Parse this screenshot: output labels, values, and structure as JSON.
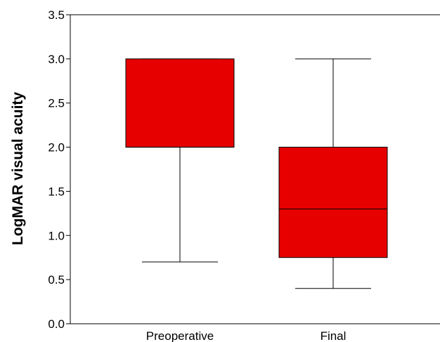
{
  "chart_data": {
    "type": "box",
    "title": "",
    "xlabel": "",
    "ylabel": "LogMAR visual acuity",
    "ylim": [
      0.0,
      3.5
    ],
    "yticks": [
      0.0,
      0.5,
      1.0,
      1.5,
      2.0,
      2.5,
      3.0,
      3.5
    ],
    "ytick_labels": [
      "0.0",
      "0.5",
      "1.0",
      "1.5",
      "2.0",
      "2.5",
      "3.0",
      "3.5"
    ],
    "categories": [
      "Preoperative",
      "Final"
    ],
    "boxes": [
      {
        "category": "Preoperative",
        "whisker_low": 0.7,
        "q1": 2.0,
        "median": 2.0,
        "q3": 3.0,
        "whisker_high": 3.0
      },
      {
        "category": "Final",
        "whisker_low": 0.4,
        "q1": 0.75,
        "median": 1.3,
        "q3": 2.0,
        "whisker_high": 3.0
      }
    ],
    "box_color": "#e60000",
    "line_color": "#000000",
    "grid": false,
    "legend": "none"
  }
}
